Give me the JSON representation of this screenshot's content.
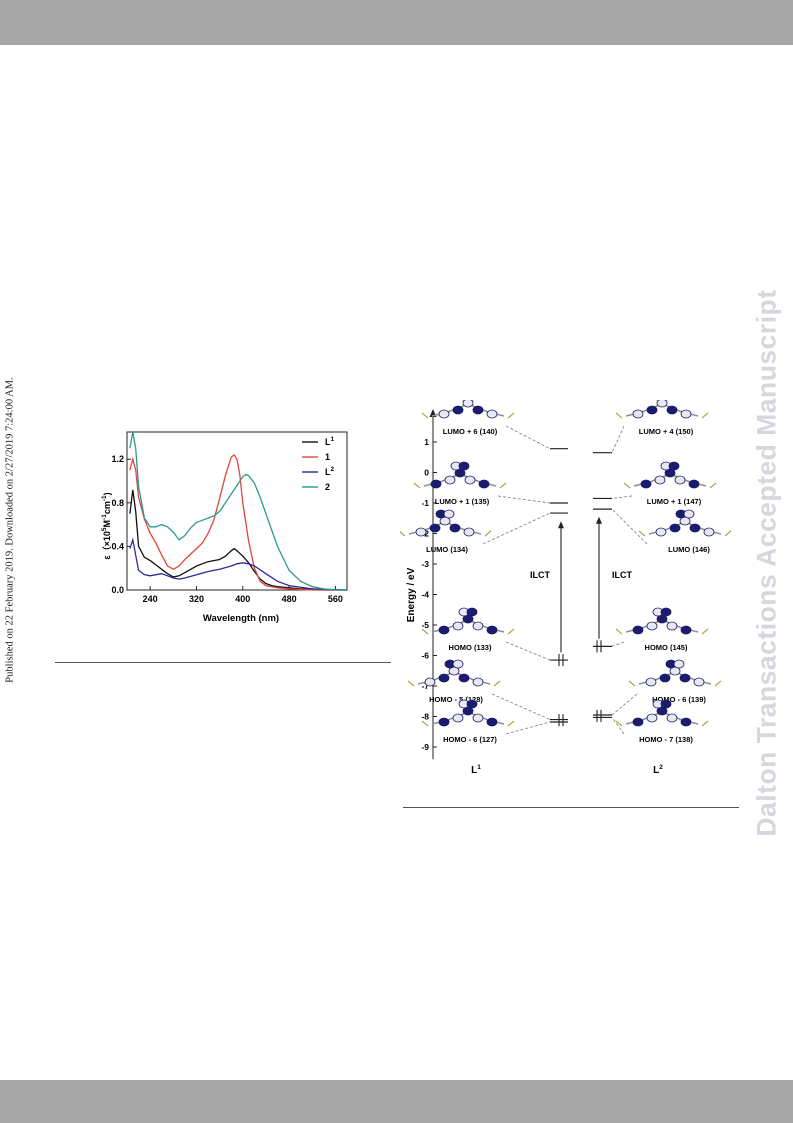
{
  "sidebar": {
    "published_note": "Published on 22 February 2019. Downloaded on 2/27/2019 7:24:00 AM.",
    "watermark": "Dalton Transactions Accepted Manuscript"
  },
  "chart_data": {
    "type": "line",
    "xlabel": "Wavelength (nm)",
    "ylabel_parts": [
      "ε（×10",
      "5",
      "M",
      "-1",
      "cm",
      "-1",
      ")"
    ],
    "xlim": [
      200,
      580
    ],
    "ylim": [
      0,
      1.45
    ],
    "xticks": [
      240,
      320,
      400,
      480,
      560
    ],
    "yticks": [
      0.0,
      0.4,
      0.8,
      1.2
    ],
    "legend_position": "top-right",
    "series": [
      {
        "name": "L",
        "sup": "1",
        "color": "#111111",
        "x": [
          205,
          210,
          215,
          220,
          230,
          240,
          250,
          260,
          270,
          280,
          290,
          300,
          310,
          320,
          330,
          340,
          350,
          360,
          370,
          380,
          385,
          390,
          400,
          410,
          420,
          430,
          440,
          450,
          460,
          480,
          500,
          520,
          540,
          560,
          580
        ],
        "y": [
          0.7,
          0.92,
          0.72,
          0.4,
          0.3,
          0.27,
          0.23,
          0.19,
          0.15,
          0.12,
          0.13,
          0.16,
          0.19,
          0.22,
          0.24,
          0.26,
          0.27,
          0.28,
          0.31,
          0.36,
          0.38,
          0.36,
          0.31,
          0.25,
          0.17,
          0.1,
          0.06,
          0.04,
          0.03,
          0.02,
          0.01,
          0.01,
          0.0,
          0.0,
          0.0
        ]
      },
      {
        "name": "1",
        "color": "#e0463c",
        "x": [
          205,
          210,
          215,
          220,
          230,
          240,
          250,
          260,
          270,
          280,
          290,
          300,
          310,
          320,
          330,
          340,
          350,
          360,
          370,
          380,
          385,
          390,
          395,
          400,
          410,
          420,
          430,
          440,
          460,
          480,
          520,
          580
        ],
        "y": [
          1.1,
          1.2,
          1.1,
          0.85,
          0.65,
          0.52,
          0.43,
          0.32,
          0.22,
          0.19,
          0.22,
          0.28,
          0.33,
          0.38,
          0.43,
          0.52,
          0.64,
          0.84,
          1.05,
          1.22,
          1.24,
          1.2,
          1.05,
          0.8,
          0.45,
          0.2,
          0.08,
          0.04,
          0.02,
          0.01,
          0.0,
          0.0
        ]
      },
      {
        "name": "L",
        "sup": "2",
        "color": "#2a2aa0",
        "x": [
          205,
          210,
          215,
          220,
          230,
          240,
          250,
          260,
          270,
          280,
          290,
          300,
          320,
          340,
          360,
          380,
          390,
          400,
          410,
          420,
          440,
          460,
          480,
          520,
          580
        ],
        "y": [
          0.38,
          0.46,
          0.32,
          0.18,
          0.14,
          0.13,
          0.14,
          0.15,
          0.13,
          0.11,
          0.1,
          0.11,
          0.14,
          0.17,
          0.19,
          0.22,
          0.24,
          0.25,
          0.24,
          0.22,
          0.15,
          0.08,
          0.04,
          0.01,
          0.0
        ]
      },
      {
        "name": "2",
        "color": "#2a9a90",
        "x": [
          205,
          210,
          215,
          220,
          230,
          240,
          250,
          260,
          270,
          280,
          290,
          300,
          310,
          320,
          330,
          340,
          350,
          360,
          370,
          380,
          390,
          400,
          405,
          410,
          420,
          430,
          440,
          450,
          460,
          480,
          500,
          520,
          540,
          560,
          580
        ],
        "y": [
          1.3,
          1.45,
          1.3,
          0.95,
          0.66,
          0.58,
          0.58,
          0.6,
          0.58,
          0.53,
          0.46,
          0.5,
          0.57,
          0.62,
          0.64,
          0.66,
          0.68,
          0.72,
          0.8,
          0.88,
          0.96,
          1.04,
          1.06,
          1.05,
          0.98,
          0.85,
          0.7,
          0.55,
          0.4,
          0.18,
          0.08,
          0.03,
          0.01,
          0.0,
          0.0
        ]
      }
    ]
  },
  "diagram": {
    "ylabel": "Energy / eV",
    "yticks": [
      1,
      0,
      -1,
      -2,
      -3,
      -4,
      -5,
      -6,
      -7,
      -8,
      -9
    ],
    "left_label": "L",
    "left_sup": "1",
    "right_label": "L",
    "right_sup": "2",
    "transition_left": "ILCT",
    "transition_right": "ILCT",
    "orbitals_left": [
      {
        "label": "LUMO + 6  (140)",
        "energy": 0.78
      },
      {
        "label": "LUMO + 1 (135)",
        "energy": -1.0
      },
      {
        "label": "LUMO (134)",
        "energy": -1.33
      },
      {
        "label": "HOMO (133)",
        "energy": -6.15
      },
      {
        "label": "HOMO - 5 (128)",
        "energy": -8.1
      },
      {
        "label": "HOMO - 6 (127)",
        "energy": -8.18
      }
    ],
    "orbitals_right": [
      {
        "label": "LUMO + 4 (150)",
        "energy": 0.65
      },
      {
        "label": "LUMO + 1 (147)",
        "energy": -0.85
      },
      {
        "label": "LUMO (146)",
        "energy": -1.2
      },
      {
        "label": "HOMO (145)",
        "energy": -5.7
      },
      {
        "label": "HOMO - 6 (139)",
        "energy": -7.95
      },
      {
        "label": "HOMO - 7 (138)",
        "energy": -8.03
      }
    ]
  }
}
